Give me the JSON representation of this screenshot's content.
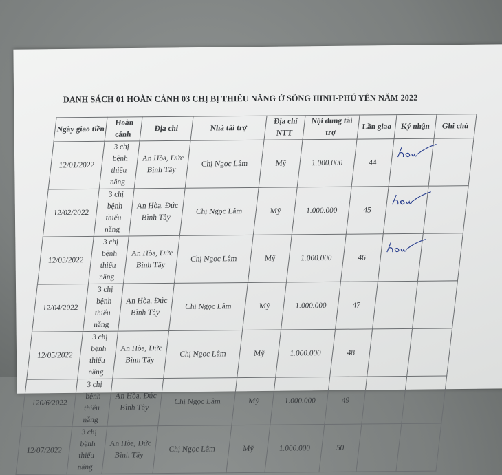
{
  "document": {
    "title": "DANH SÁCH 01 HOÀN CẢNH 03 CHỊ BỊ THIỂU NĂNG Ở SÔNG HINH-PHÚ YÊN NĂM 2022",
    "columns": [
      "Ngày giao tiền",
      "Hoàn cảnh",
      "Địa chỉ",
      "Nhà tài trợ",
      "Địa chỉ NTT",
      "Nội dung tài trợ",
      "Lần giao",
      "Ký nhận",
      "Ghi chú"
    ],
    "rows": [
      {
        "date": "12/01/2022",
        "situation": "3 chị bệnh thiểu năng",
        "address": "An Hòa, Đức Bình Tây",
        "sponsor": "Chị Ngọc Lâm",
        "sponsor_address": "Mỹ",
        "content": "1.000.000",
        "round": "44",
        "signed": true
      },
      {
        "date": "12/02/2022",
        "situation": "3 chị bệnh thiểu năng",
        "address": "An Hòa, Đức Bình Tây",
        "sponsor": "Chị Ngọc Lâm",
        "sponsor_address": "Mỹ",
        "content": "1.000.000",
        "round": "45",
        "signed": true
      },
      {
        "date": "12/03/2022",
        "situation": "3 chị bệnh thiểu năng",
        "address": "An Hòa, Đức Bình Tây",
        "sponsor": "Chị Ngọc Lâm",
        "sponsor_address": "Mỹ",
        "content": "1.000.000",
        "round": "46",
        "signed": true
      },
      {
        "date": "12/04/2022",
        "situation": "3 chị bệnh thiểu năng",
        "address": "An Hòa, Đức Bình Tây",
        "sponsor": "Chị Ngọc Lâm",
        "sponsor_address": "Mỹ",
        "content": "1.000.000",
        "round": "47",
        "signed": false
      },
      {
        "date": "12/05/2022",
        "situation": "3 chị bệnh thiểu năng",
        "address": "An Hòa, Đức Bình Tây",
        "sponsor": "Chị Ngọc Lâm",
        "sponsor_address": "Mỹ",
        "content": "1.000.000",
        "round": "48",
        "signed": false
      },
      {
        "date": "120/6/2022",
        "situation": "3 chị bệnh thiểu năng",
        "address": "An Hòa, Đức Bình Tây",
        "sponsor": "Chị Ngọc Lâm",
        "sponsor_address": "Mỹ",
        "content": "1.000.000",
        "round": "49",
        "signed": false
      },
      {
        "date": "12/07/2022",
        "situation": "3 chị bệnh thiểu năng",
        "address": "An Hòa, Đức Bình Tây",
        "sponsor": "Chị Ngọc Lâm",
        "sponsor_address": "Mỹ",
        "content": "1.000.000",
        "round": "50",
        "signed": false
      }
    ],
    "signature_ink_color": "#2a3f8f"
  }
}
